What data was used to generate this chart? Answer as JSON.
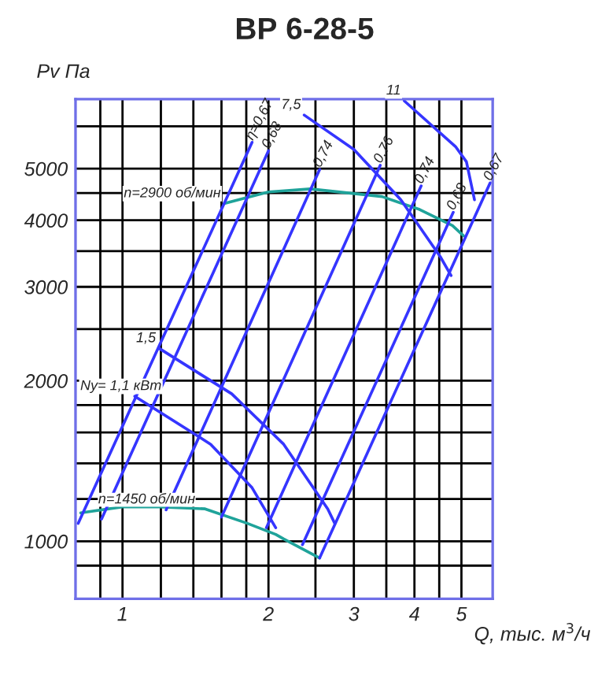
{
  "chart_data": {
    "type": "line",
    "title": "ВР 6-28-5",
    "xlabel": "Q, тыс. м$^{3}$/ч",
    "ylabel": "Pv Па",
    "log": "xy",
    "grid": true,
    "marker": "none",
    "line_style": "solid",
    "xlim": [
      0.8,
      5.8
    ],
    "xticks": [
      {
        "value": 0.9,
        "label": null
      },
      1,
      {
        "value": 1.2,
        "label": null
      },
      {
        "value": 1.4,
        "label": null
      },
      {
        "value": 1.6,
        "label": null
      },
      {
        "value": 1.8,
        "label": null
      },
      2,
      {
        "value": 2.5,
        "label": null
      },
      3,
      {
        "value": 3.5,
        "label": null
      },
      4,
      {
        "value": 4.5,
        "label": null
      },
      5
    ],
    "ylim": [
      780,
      6750
    ],
    "yticks": [
      {
        "value": 900,
        "label": null
      },
      1000,
      {
        "value": 1200,
        "label": null
      },
      {
        "value": 1400,
        "label": null
      },
      {
        "value": 1600,
        "label": null
      },
      {
        "value": 1800,
        "label": null
      },
      2000,
      {
        "value": 2500,
        "label": null
      },
      3000,
      {
        "value": 3500,
        "label": null
      },
      4000,
      {
        "value": 4500,
        "label": null
      },
      5000,
      {
        "value": 6000,
        "label": null
      }
    ],
    "series": [
      {
        "name": "n=2900 об/мин",
        "color": "#1fa39a",
        "x": [
          1.62,
          2.0,
          2.44,
          3.43,
          4.1,
          4.79,
          5.05
        ],
        "values": [
          4300,
          4520,
          4580,
          4430,
          4190,
          3910,
          3740
        ]
      },
      {
        "name": "n=1450 об/мин",
        "color": "#1fa39a",
        "x": [
          0.82,
          1.0,
          1.19,
          1.48,
          1.81,
          2.07,
          2.15,
          2.55
        ],
        "values": [
          1130,
          1160,
          1160,
          1150,
          1080,
          1030,
          1010,
          930
        ]
      },
      {
        "name": "η=0,67",
        "color": "#3535ff",
        "x": [
          0.81,
          1.85
        ],
        "values": [
          1080,
          5600
        ]
      },
      {
        "name": "0,68",
        "color": "#3535ff",
        "x": [
          0.905,
          2.0
        ],
        "values": [
          1100,
          5400
        ]
      },
      {
        "name": "0,74",
        "color": "#3535ff",
        "x": [
          1.23,
          2.55
        ],
        "values": [
          1145,
          4980
        ]
      },
      {
        "name": "0,76",
        "color": "#3535ff",
        "x": [
          1.6,
          3.4
        ],
        "values": [
          1110,
          5070
        ]
      },
      {
        "name": "0,74",
        "color": "#3535ff",
        "x": [
          1.98,
          4.13
        ],
        "values": [
          1060,
          4640
        ]
      },
      {
        "name": "0,68",
        "color": "#3535ff",
        "x": [
          2.35,
          4.81
        ],
        "values": [
          985,
          4140
        ]
      },
      {
        "name": "0,67",
        "color": "#3535ff",
        "x": [
          2.55,
          5.73
        ],
        "values": [
          930,
          4700
        ]
      },
      {
        "name": "Ny= 1,1 кВт",
        "color": "#3535ff",
        "x": [
          1.06,
          1.52,
          1.85,
          2.07
        ],
        "values": [
          1870,
          1520,
          1260,
          1060
        ]
      },
      {
        "name": "1,5",
        "color": "#3535ff",
        "x": [
          1.19,
          1.68,
          2.15,
          2.65,
          2.74
        ],
        "values": [
          2300,
          1890,
          1520,
          1150,
          1080
        ]
      },
      {
        "name": "7,5",
        "color": "#3535ff",
        "x": [
          2.37,
          3.0,
          3.75,
          4.52,
          4.76
        ],
        "values": [
          6300,
          5430,
          4370,
          3420,
          3150
        ]
      },
      {
        "name": "11",
        "color": "#3535ff",
        "x": [
          3.81,
          4.86,
          5.12,
          5.32
        ],
        "values": [
          6700,
          5500,
          5150,
          4370
        ]
      }
    ]
  }
}
